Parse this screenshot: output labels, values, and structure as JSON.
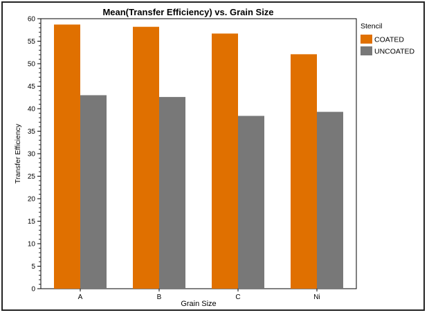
{
  "chart_data": {
    "type": "bar",
    "title": "Mean(Transfer Efficiency) vs. Grain Size",
    "xlabel": "Grain Size",
    "ylabel": "Transfer Efficiency",
    "categories": [
      "A",
      "B",
      "C",
      "Ni"
    ],
    "ylim": [
      0,
      60
    ],
    "yticks": [
      "0",
      "5",
      "10",
      "15",
      "20",
      "25",
      "30",
      "35",
      "40",
      "45",
      "50",
      "55",
      "60"
    ],
    "legend_title": "Stencil",
    "legend_position": "top-right, outside plot",
    "grid": false,
    "series": [
      {
        "name": "COATED",
        "color": "#e07000",
        "values": [
          58.7,
          58.2,
          56.7,
          52.1
        ]
      },
      {
        "name": "UNCOATED",
        "color": "#787878",
        "values": [
          43.0,
          42.6,
          38.4,
          39.3
        ]
      }
    ]
  }
}
